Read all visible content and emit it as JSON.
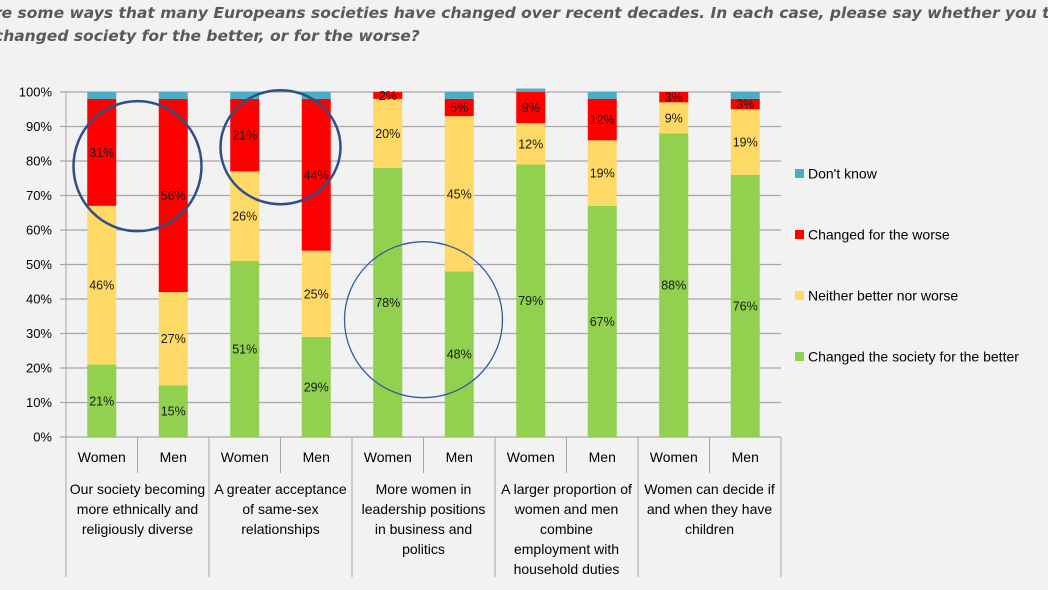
{
  "title": {
    "line1": "re some ways that many Europeans societies have changed over recent decades. In each case, please say whether you t",
    "line2": " changed society for the better, or for the worse?"
  },
  "chart_data": {
    "type": "bar",
    "stacked": true,
    "percent_stacked": true,
    "title": "re some ways that many Europeans societies have changed over recent decades. In each case, please say whether you t… changed society for the better, or for the worse?",
    "xlabel": "",
    "ylabel": "",
    "ylim": [
      0,
      100
    ],
    "y_ticks": [
      "0%",
      "10%",
      "20%",
      "30%",
      "40%",
      "50%",
      "60%",
      "70%",
      "80%",
      "90%",
      "100%"
    ],
    "grid": true,
    "legend_position": "right",
    "groups": [
      {
        "label_lines": [
          "Our society becoming",
          "more ethnically and",
          "religiously diverse"
        ]
      },
      {
        "label_lines": [
          "A greater acceptance",
          "of same-sex",
          "relationships"
        ]
      },
      {
        "label_lines": [
          "More women in",
          "leadership positions",
          "in business and",
          "politics"
        ]
      },
      {
        "label_lines": [
          "A larger proportion of",
          "women and men",
          "combine",
          "employment with",
          "household duties"
        ]
      },
      {
        "label_lines": [
          "Women can decide if",
          "and when they have",
          "children"
        ]
      }
    ],
    "categories": [
      "Women",
      "Men",
      "Women",
      "Men",
      "Women",
      "Men",
      "Women",
      "Men",
      "Women",
      "Men"
    ],
    "series": [
      {
        "name": "Changed the society for the better",
        "color": "#92d050",
        "values": [
          21,
          15,
          51,
          29,
          78,
          48,
          79,
          67,
          88,
          76
        ],
        "labels": [
          "21%",
          "15%",
          "51%",
          "29%",
          "78%",
          "48%",
          "79%",
          "67%",
          "88%",
          "76%"
        ]
      },
      {
        "name": "Neither better nor worse",
        "color": "#ffd966",
        "values": [
          46,
          27,
          26,
          25,
          20,
          45,
          12,
          19,
          9,
          19
        ],
        "labels": [
          "46%",
          "27%",
          "26%",
          "25%",
          "20%",
          "45%",
          "12%",
          "19%",
          "9%",
          "19%"
        ]
      },
      {
        "name": "Changed for the worse",
        "color": "#ff0000",
        "values": [
          31,
          56,
          21,
          44,
          2,
          5,
          9,
          12,
          3,
          3
        ],
        "labels": [
          "31%",
          "56%",
          "21%",
          "44%",
          "2%",
          "5%",
          "9%",
          "12%",
          "3%",
          "3%"
        ]
      },
      {
        "name": "Don't know",
        "color": "#4bacc6",
        "values": [
          2,
          2,
          2,
          2,
          0,
          2,
          1,
          2,
          0,
          2
        ],
        "labels": null
      }
    ],
    "legend": [
      "Don't know",
      "Changed for the worse",
      "Neither better nor worse",
      "Changed the society for the better"
    ],
    "annotations": [
      {
        "type": "circle",
        "around": "group 1 (Changed for the worse)",
        "color": "#2f4f8a"
      },
      {
        "type": "circle",
        "around": "group 2 (Changed for the worse)",
        "color": "#2f4f8a"
      },
      {
        "type": "circle",
        "around": "group 3 (Changed the society for the better)",
        "color": "#2f5f9a"
      }
    ]
  }
}
